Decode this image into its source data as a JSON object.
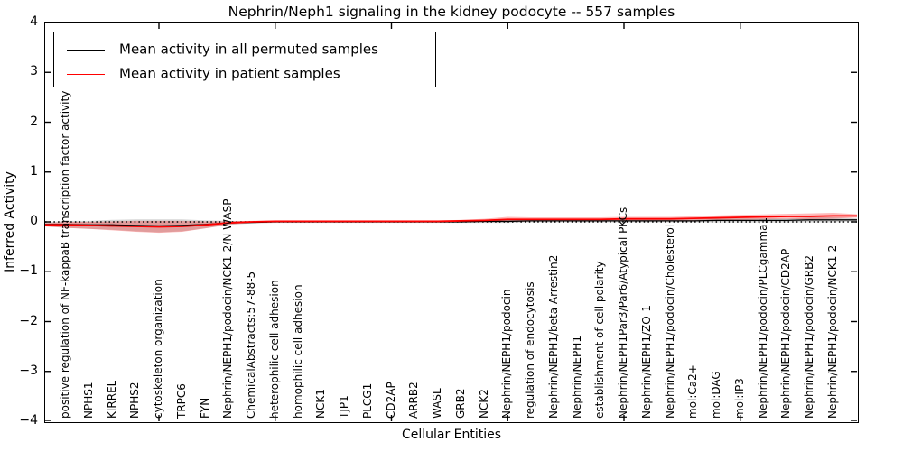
{
  "header": {
    "title": "Nephrin/Neph1 signaling in the kidney podocyte -- 557 samples",
    "sample_count": "557"
  },
  "legend": {
    "position": "upper left",
    "items": [
      {
        "label": "Mean activity in all permuted samples",
        "color": "#000000"
      },
      {
        "label": "Mean activity in patient samples",
        "color": "#ff0000"
      }
    ]
  },
  "chart_data": {
    "type": "line",
    "title": "Nephrin/Neph1 signaling in the kidney podocyte -- 557 samples",
    "xlabel": "Cellular Entities",
    "ylabel": "Inferred Activity",
    "ylim": [
      -4,
      4
    ],
    "yticks": [
      4,
      3,
      2,
      1,
      0,
      -1,
      -2,
      -3,
      -4
    ],
    "xtick_interval": 5,
    "grid": false,
    "zero_line": {
      "style": "dotted",
      "color": "#000000",
      "value": 0
    },
    "band_colors": {
      "permuted": "rgba(120,120,120,0.30)",
      "patient": "rgba(255,0,0,0.27)"
    },
    "categories": [
      "positive regulation of NF-kappaB transcription factor activity",
      "NPHS1",
      "KIRREL",
      "NPHS2",
      "cytoskeleton organization",
      "TRPC6",
      "FYN",
      "Nephrin/NEPH1/podocin/NCK1-2/N-WASP",
      "ChemicalAbstracts:57-88-5",
      "heterophilic cell adhesion",
      "homophilic cell adhesion",
      "NCK1",
      "TJP1",
      "PLCG1",
      "CD2AP",
      "ARRB2",
      "WASL",
      "GRB2",
      "NCK2",
      "Nephrin/NEPH1/podocin",
      "regulation of endocytosis",
      "Nephrin/NEPH1/beta Arrestin2",
      "Nephrin/NEPH1",
      "establishment of cell polarity",
      "Nephrin/NEPH1Par3/Par6/Atypical PKCs",
      "Nephrin/NEPH1/ZO-1",
      "Nephrin/NEPH1/podocin/Cholesterol",
      "mol:Ca2+",
      "mol:DAG",
      "mol:IP3",
      "Nephrin/NEPH1/podocin/PLCgamma1",
      "Nephrin/NEPH1/podocin/CD2AP",
      "Nephrin/NEPH1/podocin/GRB2",
      "Nephrin/NEPH1/podocin/NCK1-2"
    ],
    "series": [
      {
        "name": "Mean activity in all permuted samples",
        "color": "#000000",
        "line_width": 1.3,
        "values": [
          -0.05,
          -0.06,
          -0.06,
          -0.07,
          -0.08,
          -0.07,
          -0.05,
          -0.02,
          -0.01,
          0.0,
          0.0,
          0.0,
          0.0,
          0.0,
          0.0,
          0.0,
          0.0,
          0.0,
          0.01,
          0.01,
          0.02,
          0.02,
          0.02,
          0.02,
          0.02,
          0.02,
          0.02,
          0.02,
          0.03,
          0.03,
          0.03,
          0.03,
          0.04,
          0.04
        ],
        "band_halfwidth": [
          0.07,
          0.08,
          0.1,
          0.12,
          0.13,
          0.12,
          0.08,
          0.04,
          0.02,
          0.02,
          0.02,
          0.02,
          0.02,
          0.02,
          0.02,
          0.02,
          0.02,
          0.02,
          0.03,
          0.03,
          0.03,
          0.03,
          0.03,
          0.03,
          0.03,
          0.03,
          0.03,
          0.03,
          0.04,
          0.04,
          0.04,
          0.04,
          0.05,
          0.05
        ]
      },
      {
        "name": "Mean activity in patient samples",
        "color": "#ff0000",
        "line_width": 1.8,
        "values": [
          -0.06,
          -0.07,
          -0.08,
          -0.09,
          -0.1,
          -0.09,
          -0.06,
          -0.02,
          0.0,
          0.01,
          0.01,
          0.01,
          0.01,
          0.01,
          0.01,
          0.01,
          0.01,
          0.02,
          0.03,
          0.05,
          0.05,
          0.05,
          0.05,
          0.05,
          0.06,
          0.06,
          0.06,
          0.07,
          0.08,
          0.09,
          0.1,
          0.11,
          0.11,
          0.12
        ],
        "band_halfwidth": [
          0.06,
          0.07,
          0.09,
          0.11,
          0.12,
          0.11,
          0.07,
          0.03,
          0.02,
          0.02,
          0.02,
          0.02,
          0.02,
          0.02,
          0.02,
          0.02,
          0.02,
          0.02,
          0.03,
          0.05,
          0.04,
          0.04,
          0.04,
          0.04,
          0.04,
          0.04,
          0.04,
          0.04,
          0.05,
          0.05,
          0.05,
          0.05,
          0.06,
          0.06
        ]
      }
    ]
  }
}
